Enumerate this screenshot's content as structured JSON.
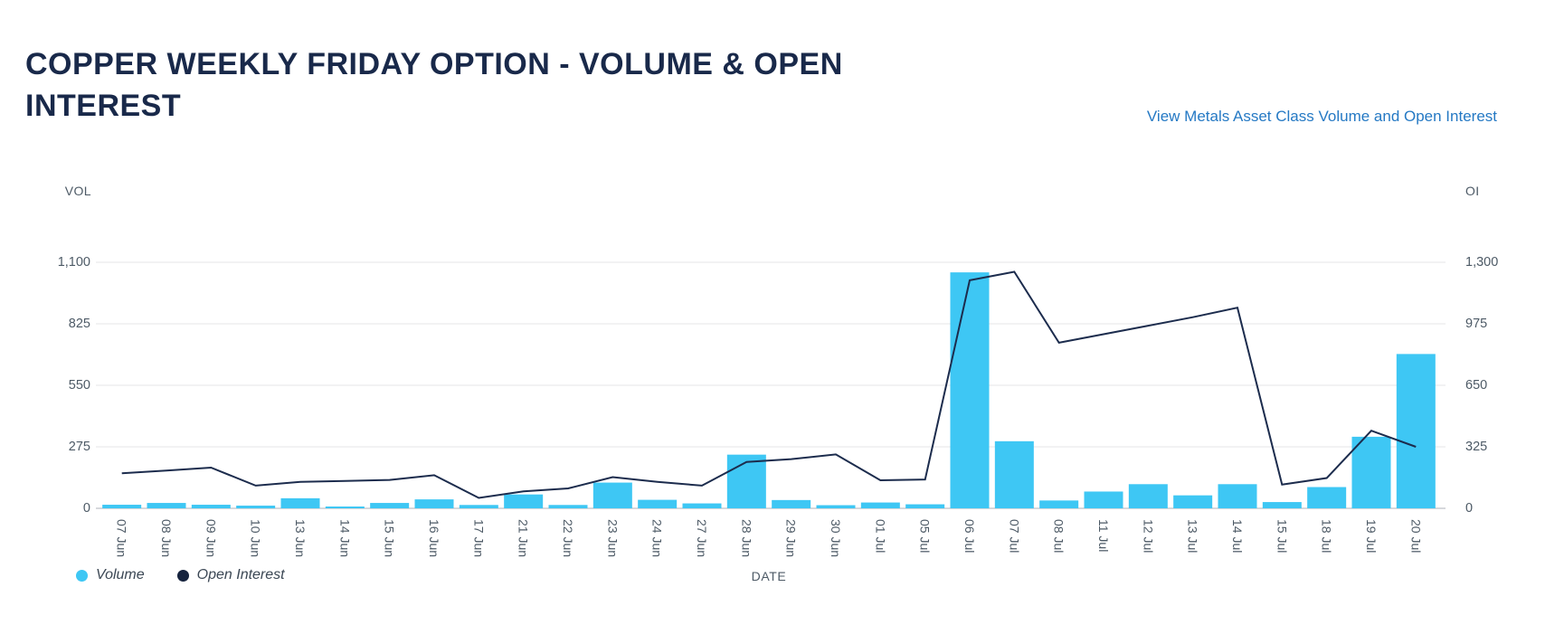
{
  "header": {
    "title": "COPPER WEEKLY FRIDAY OPTION - VOLUME & OPEN INTEREST",
    "link": "View Metals Asset Class Volume and Open Interest"
  },
  "colors": {
    "title_text": "#19294a",
    "link_text": "#2579c4",
    "axis_text": "#4d5a66",
    "gridline": "#eeeeef",
    "baseline": "#c9ccd0",
    "bar": "#3EC7F4",
    "line": "#1C2C4D"
  },
  "chart_data": {
    "type": "bar",
    "subtype": "bar+line dual axis",
    "x": [
      "07 Jun",
      "08 Jun",
      "09 Jun",
      "10 Jun",
      "13 Jun",
      "14 Jun",
      "15 Jun",
      "16 Jun",
      "17 Jun",
      "21 Jun",
      "22 Jun",
      "23 Jun",
      "24 Jun",
      "27 Jun",
      "28 Jun",
      "29 Jun",
      "30 Jun",
      "01 Jul",
      "05 Jul",
      "06 Jul",
      "07 Jul",
      "08 Jul",
      "11 Jul",
      "12 Jul",
      "13 Jul",
      "14 Jul",
      "15 Jul",
      "18 Jul",
      "19 Jul",
      "20 Jul"
    ],
    "series": [
      {
        "name": "Volume",
        "render": "bar",
        "axis": "left",
        "color": "#3EC7F4",
        "values": [
          16,
          24,
          16,
          12,
          45,
          8,
          24,
          40,
          15,
          62,
          15,
          115,
          38,
          22,
          240,
          37,
          14,
          26,
          18,
          1055,
          300,
          35,
          75,
          108,
          58,
          108,
          28,
          95,
          320,
          690
        ]
      },
      {
        "name": "Open Interest",
        "render": "line",
        "axis": "right",
        "color": "#1C2C4D",
        "values": [
          185,
          200,
          215,
          120,
          140,
          145,
          150,
          175,
          55,
          90,
          105,
          165,
          140,
          120,
          245,
          260,
          285,
          148,
          152,
          1205,
          1250,
          875,
          920,
          965,
          1010,
          1060,
          125,
          160,
          410,
          325
        ]
      }
    ],
    "left_axis": {
      "label": "VOL",
      "ticks": [
        "0",
        "275",
        "550",
        "825",
        "1,100"
      ],
      "min": 0,
      "max": 1100
    },
    "right_axis": {
      "label": "OI",
      "ticks": [
        "0",
        "325",
        "650",
        "975",
        "1,300"
      ],
      "min": 0,
      "max": 1300
    },
    "xlabel": "DATE",
    "grid": "horizontal only",
    "legend_position": "bottom-left",
    "legend": [
      {
        "label": "Volume",
        "color": "#3EC7F4"
      },
      {
        "label": "Open Interest",
        "color": "#16233E"
      }
    ]
  }
}
